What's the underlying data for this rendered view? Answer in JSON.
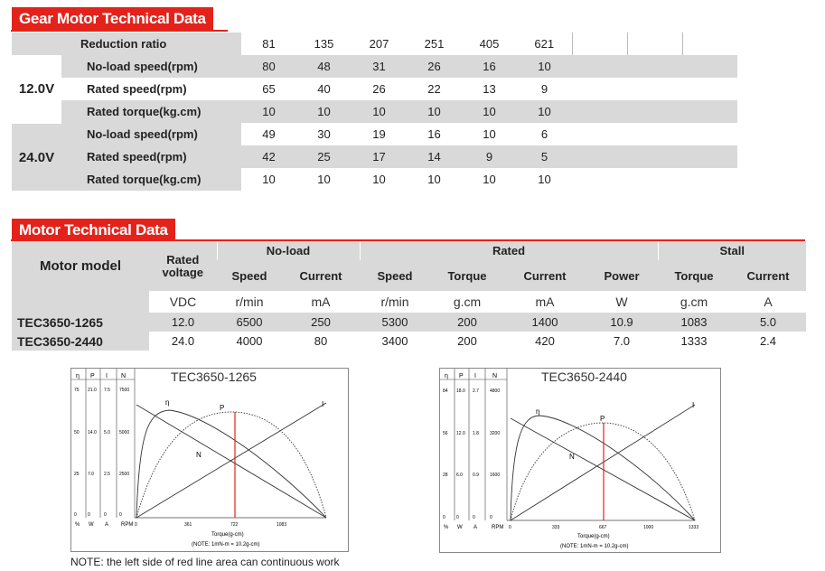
{
  "gear": {
    "title": "Gear Motor Technical Data",
    "ratio_label": "Reduction ratio",
    "ratios": [
      "81",
      "135",
      "207",
      "251",
      "405",
      "621"
    ],
    "v12": "12.0V",
    "v24": "24.0V",
    "row_labels": [
      "No-load speed(rpm)",
      "Rated speed(rpm)",
      "Rated torque(kg.cm)"
    ],
    "v12_rows": [
      [
        "80",
        "48",
        "31",
        "26",
        "16",
        "10"
      ],
      [
        "65",
        "40",
        "26",
        "22",
        "13",
        "9"
      ],
      [
        "10",
        "10",
        "10",
        "10",
        "10",
        "10"
      ]
    ],
    "v24_rows": [
      [
        "49",
        "30",
        "19",
        "16",
        "10",
        "6"
      ],
      [
        "42",
        "25",
        "17",
        "14",
        "9",
        "5"
      ],
      [
        "10",
        "10",
        "10",
        "10",
        "10",
        "10"
      ]
    ]
  },
  "motor": {
    "title": "Motor Technical Data",
    "model_header": "Motor model",
    "rated_voltage": "Rated voltage",
    "noload": "No-load",
    "rated": "Rated",
    "stall": "Stall",
    "cols": [
      "Speed",
      "Current",
      "Speed",
      "Torque",
      "Current",
      "Power",
      "Torque",
      "Current"
    ],
    "units": [
      "VDC",
      "r/min",
      "mA",
      "r/min",
      "g.cm",
      "mA",
      "W",
      "g.cm",
      "A"
    ],
    "rows": [
      {
        "model": "TEC3650-1265",
        "vals": [
          "12.0",
          "6500",
          "250",
          "5300",
          "200",
          "1400",
          "10.9",
          "1083",
          "5.0"
        ]
      },
      {
        "model": "TEC3650-2440",
        "vals": [
          "24.0",
          "4000",
          "80",
          "3400",
          "200",
          "420",
          "7.0",
          "1333",
          "2.4"
        ]
      }
    ]
  },
  "graph1": {
    "title": "TEC3650-1265",
    "col_heads": [
      "η",
      "P",
      "I",
      "N"
    ],
    "axis_units": [
      "%",
      "W",
      "A",
      "RPM"
    ],
    "row1": [
      "75",
      "21.0",
      "7.5",
      "7500"
    ],
    "row2": [
      "50",
      "14.0",
      "5.0",
      "5000"
    ],
    "row3": [
      "25",
      "7.0",
      "2.5",
      "2500"
    ],
    "row0": [
      "0",
      "0",
      "0",
      "0"
    ],
    "x_ticks": [
      "0",
      "361",
      "722",
      "1083"
    ],
    "xlabel": "Torque(g-cm)",
    "note": "(NOTE: 1mN-m = 10.2g-cm)",
    "curve_labels": [
      "η",
      "P",
      "N",
      "I"
    ]
  },
  "graph2": {
    "title": "TEC3650-2440",
    "col_heads": [
      "η",
      "P",
      "I",
      "N"
    ],
    "axis_units": [
      "%",
      "W",
      "A",
      "RPM"
    ],
    "row1": [
      "84",
      "18.0",
      "2.7",
      "4800"
    ],
    "row2": [
      "56",
      "12.0",
      "1.8",
      "3200"
    ],
    "row3": [
      "28",
      "6.0",
      "0.9",
      "1600"
    ],
    "row0": [
      "0",
      "0",
      "0",
      "0"
    ],
    "x_ticks": [
      "0",
      "333",
      "667",
      "1000",
      "1333"
    ],
    "xlabel": "Torque(g-cm)",
    "note": "(NOTE: 1mN-m = 10.2g-cm)",
    "curve_labels": [
      "η",
      "P",
      "N",
      "I"
    ]
  },
  "footnote": "NOTE: the left side of red line area can continuous work",
  "colors": {
    "accent": "#e3231b",
    "shade": "#d9d9d9"
  }
}
